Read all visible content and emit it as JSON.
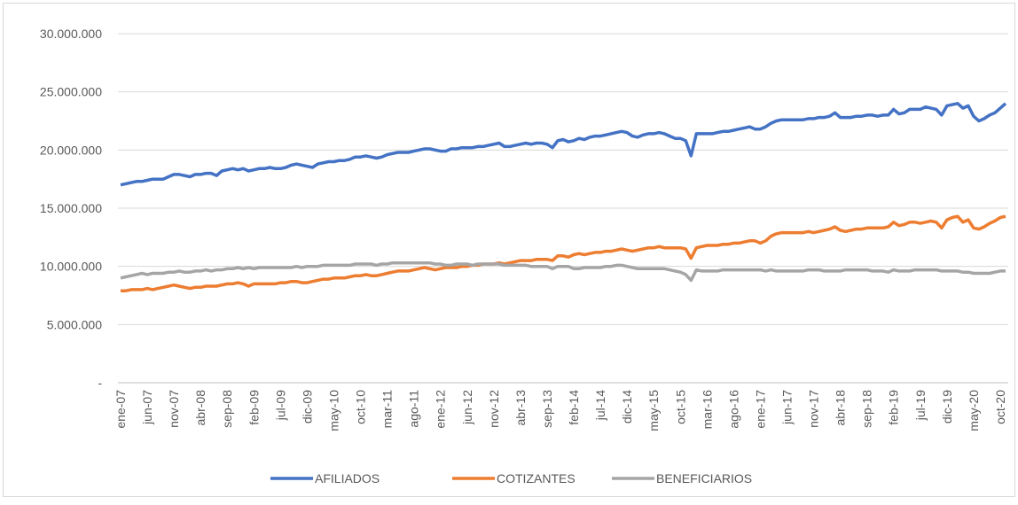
{
  "chart_data": {
    "type": "line",
    "categories": [
      "ene-07",
      null,
      null,
      null,
      null,
      "jun-07",
      null,
      null,
      null,
      null,
      "nov-07",
      null,
      null,
      null,
      null,
      "abr-08",
      null,
      null,
      null,
      null,
      "sep-08",
      null,
      null,
      null,
      null,
      "feb-09",
      null,
      null,
      null,
      null,
      "jul-09",
      null,
      null,
      null,
      null,
      "dic-09",
      null,
      null,
      null,
      null,
      "may-10",
      null,
      null,
      null,
      null,
      "oct-10",
      null,
      null,
      null,
      null,
      "mar-11",
      null,
      null,
      null,
      null,
      "ago-11",
      null,
      null,
      null,
      null,
      "ene-12",
      null,
      null,
      null,
      null,
      "jun-12",
      null,
      null,
      null,
      null,
      "nov-12",
      null,
      null,
      null,
      null,
      "abr-13",
      null,
      null,
      null,
      null,
      "sep-13",
      null,
      null,
      null,
      null,
      "feb-14",
      null,
      null,
      null,
      null,
      "jul-14",
      null,
      null,
      null,
      null,
      "dic-14",
      null,
      null,
      null,
      null,
      "may-15",
      null,
      null,
      null,
      null,
      "oct-15",
      null,
      null,
      null,
      null,
      "mar-16",
      null,
      null,
      null,
      null,
      "ago-16",
      null,
      null,
      null,
      null,
      "ene-17",
      null,
      null,
      null,
      null,
      "jun-17",
      null,
      null,
      null,
      null,
      "nov-17",
      null,
      null,
      null,
      null,
      "abr-18",
      null,
      null,
      null,
      null,
      "sep-18",
      null,
      null,
      null,
      null,
      "feb-19",
      null,
      null,
      null,
      null,
      "jul-19",
      null,
      null,
      null,
      null,
      "dic-19",
      null,
      null,
      null,
      null,
      "may-20",
      null,
      null,
      null,
      null,
      "oct-20",
      null
    ],
    "series": [
      {
        "name": "AFILIADOS",
        "color": "#4472c4",
        "values": [
          17000000,
          17100000,
          17200000,
          17300000,
          17300000,
          17400000,
          17500000,
          17500000,
          17500000,
          17700000,
          17900000,
          17900000,
          17800000,
          17700000,
          17900000,
          17900000,
          18000000,
          18000000,
          17800000,
          18200000,
          18300000,
          18400000,
          18300000,
          18400000,
          18200000,
          18300000,
          18400000,
          18400000,
          18500000,
          18400000,
          18400000,
          18500000,
          18700000,
          18800000,
          18700000,
          18600000,
          18500000,
          18800000,
          18900000,
          19000000,
          19000000,
          19100000,
          19100000,
          19200000,
          19400000,
          19400000,
          19500000,
          19400000,
          19300000,
          19400000,
          19600000,
          19700000,
          19800000,
          19800000,
          19800000,
          19900000,
          20000000,
          20100000,
          20100000,
          20000000,
          19900000,
          19900000,
          20100000,
          20100000,
          20200000,
          20200000,
          20200000,
          20300000,
          20300000,
          20400000,
          20500000,
          20600000,
          20300000,
          20300000,
          20400000,
          20500000,
          20600000,
          20500000,
          20600000,
          20600000,
          20500000,
          20200000,
          20800000,
          20900000,
          20700000,
          20800000,
          21000000,
          20900000,
          21100000,
          21200000,
          21200000,
          21300000,
          21400000,
          21500000,
          21600000,
          21500000,
          21200000,
          21100000,
          21300000,
          21400000,
          21400000,
          21500000,
          21400000,
          21200000,
          21000000,
          21000000,
          20800000,
          19500000,
          21400000,
          21400000,
          21400000,
          21400000,
          21500000,
          21600000,
          21600000,
          21700000,
          21800000,
          21900000,
          22000000,
          21800000,
          21800000,
          22000000,
          22300000,
          22500000,
          22600000,
          22600000,
          22600000,
          22600000,
          22600000,
          22700000,
          22700000,
          22800000,
          22800000,
          22900000,
          23200000,
          22800000,
          22800000,
          22800000,
          22900000,
          22900000,
          23000000,
          23000000,
          22900000,
          23000000,
          23000000,
          23500000,
          23100000,
          23200000,
          23500000,
          23500000,
          23500000,
          23700000,
          23600000,
          23500000,
          23000000,
          23800000,
          23900000,
          24000000,
          23600000,
          23800000,
          22900000,
          22500000,
          22700000,
          23000000,
          23200000,
          23600000,
          24000000
        ]
      },
      {
        "name": "COTIZANTES",
        "color": "#ed7d31",
        "values": [
          7900000,
          7900000,
          8000000,
          8000000,
          8000000,
          8100000,
          8000000,
          8100000,
          8200000,
          8300000,
          8400000,
          8300000,
          8200000,
          8100000,
          8200000,
          8200000,
          8300000,
          8300000,
          8300000,
          8400000,
          8500000,
          8500000,
          8600000,
          8500000,
          8300000,
          8500000,
          8500000,
          8500000,
          8500000,
          8500000,
          8600000,
          8600000,
          8700000,
          8700000,
          8600000,
          8600000,
          8700000,
          8800000,
          8900000,
          8900000,
          9000000,
          9000000,
          9000000,
          9100000,
          9200000,
          9200000,
          9300000,
          9200000,
          9200000,
          9300000,
          9400000,
          9500000,
          9600000,
          9600000,
          9600000,
          9700000,
          9800000,
          9900000,
          9800000,
          9700000,
          9800000,
          9900000,
          9900000,
          9900000,
          10000000,
          10000000,
          10100000,
          10100000,
          10200000,
          10200000,
          10200000,
          10300000,
          10200000,
          10300000,
          10400000,
          10500000,
          10500000,
          10500000,
          10600000,
          10600000,
          10600000,
          10500000,
          10900000,
          10900000,
          10800000,
          11000000,
          11100000,
          11000000,
          11100000,
          11200000,
          11200000,
          11300000,
          11300000,
          11400000,
          11500000,
          11400000,
          11300000,
          11400000,
          11500000,
          11600000,
          11600000,
          11700000,
          11600000,
          11600000,
          11600000,
          11600000,
          11500000,
          10700000,
          11600000,
          11700000,
          11800000,
          11800000,
          11800000,
          11900000,
          11900000,
          12000000,
          12000000,
          12100000,
          12200000,
          12200000,
          12000000,
          12200000,
          12600000,
          12800000,
          12900000,
          12900000,
          12900000,
          12900000,
          12900000,
          13000000,
          12900000,
          13000000,
          13100000,
          13200000,
          13400000,
          13100000,
          13000000,
          13100000,
          13200000,
          13200000,
          13300000,
          13300000,
          13300000,
          13300000,
          13400000,
          13800000,
          13500000,
          13600000,
          13800000,
          13800000,
          13700000,
          13800000,
          13900000,
          13800000,
          13300000,
          14000000,
          14200000,
          14300000,
          13800000,
          14000000,
          13300000,
          13200000,
          13400000,
          13700000,
          13900000,
          14200000,
          14300000
        ]
      },
      {
        "name": "BENEFICIARIOS",
        "color": "#a5a5a5",
        "values": [
          9000000,
          9100000,
          9200000,
          9300000,
          9400000,
          9300000,
          9400000,
          9400000,
          9400000,
          9500000,
          9500000,
          9600000,
          9500000,
          9500000,
          9600000,
          9600000,
          9700000,
          9600000,
          9700000,
          9700000,
          9800000,
          9800000,
          9900000,
          9800000,
          9900000,
          9800000,
          9900000,
          9900000,
          9900000,
          9900000,
          9900000,
          9900000,
          9900000,
          10000000,
          9900000,
          10000000,
          10000000,
          10000000,
          10100000,
          10100000,
          10100000,
          10100000,
          10100000,
          10100000,
          10200000,
          10200000,
          10200000,
          10200000,
          10100000,
          10200000,
          10200000,
          10300000,
          10300000,
          10300000,
          10300000,
          10300000,
          10300000,
          10300000,
          10300000,
          10200000,
          10200000,
          10100000,
          10100000,
          10200000,
          10200000,
          10200000,
          10100000,
          10200000,
          10200000,
          10200000,
          10200000,
          10200000,
          10100000,
          10100000,
          10100000,
          10100000,
          10100000,
          10000000,
          10000000,
          10000000,
          10000000,
          9800000,
          10000000,
          10000000,
          10000000,
          9800000,
          9800000,
          9900000,
          9900000,
          9900000,
          9900000,
          10000000,
          10000000,
          10100000,
          10100000,
          10000000,
          9900000,
          9800000,
          9800000,
          9800000,
          9800000,
          9800000,
          9800000,
          9700000,
          9600000,
          9500000,
          9300000,
          8800000,
          9700000,
          9600000,
          9600000,
          9600000,
          9600000,
          9700000,
          9700000,
          9700000,
          9700000,
          9700000,
          9700000,
          9700000,
          9700000,
          9600000,
          9700000,
          9600000,
          9600000,
          9600000,
          9600000,
          9600000,
          9600000,
          9700000,
          9700000,
          9700000,
          9600000,
          9600000,
          9600000,
          9600000,
          9700000,
          9700000,
          9700000,
          9700000,
          9700000,
          9600000,
          9600000,
          9600000,
          9500000,
          9700000,
          9600000,
          9600000,
          9600000,
          9700000,
          9700000,
          9700000,
          9700000,
          9700000,
          9600000,
          9600000,
          9600000,
          9600000,
          9500000,
          9500000,
          9400000,
          9400000,
          9400000,
          9400000,
          9500000,
          9600000,
          9600000
        ]
      }
    ],
    "ylim": [
      0,
      30000000
    ],
    "yticks": [
      {
        "value": 0,
        "label": "-"
      },
      {
        "value": 5000000,
        "label": "5.000.000"
      },
      {
        "value": 10000000,
        "label": "10.000.000"
      },
      {
        "value": 15000000,
        "label": "15.000.000"
      },
      {
        "value": 20000000,
        "label": "20.000.000"
      },
      {
        "value": 25000000,
        "label": "25.000.000"
      },
      {
        "value": 30000000,
        "label": "30.000.000"
      }
    ],
    "grid": true,
    "legend": "bottom"
  }
}
